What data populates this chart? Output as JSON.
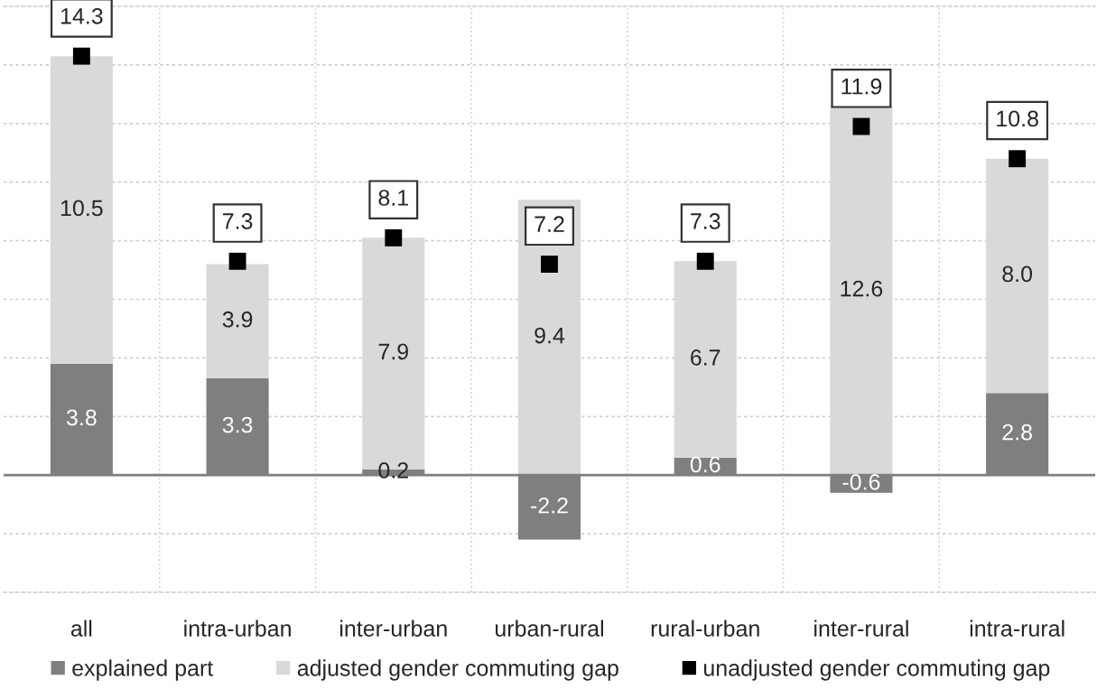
{
  "chart_data": {
    "type": "bar",
    "stacked": true,
    "categories": [
      "all",
      "intra-urban",
      "inter-urban",
      "urban-rural",
      "rural-urban",
      "inter-rural",
      "intra-rural"
    ],
    "series": [
      {
        "name": "explained part",
        "color": "#7f7f7f",
        "values": [
          3.8,
          3.3,
          0.2,
          -2.2,
          0.6,
          -0.6,
          2.8
        ],
        "value_labels": [
          "3.8",
          "3.3",
          "0.2",
          "-2.2",
          "0.6",
          "-0.6",
          "2.8"
        ]
      },
      {
        "name": "adjusted gender commuting gap",
        "color": "#d9d9d9",
        "values": [
          10.5,
          3.9,
          7.9,
          9.4,
          6.7,
          12.6,
          8.0
        ],
        "value_labels": [
          "10.5",
          "3.9",
          "7.9",
          "9.4",
          "6.7",
          "12.6",
          "8.0"
        ]
      },
      {
        "name": "unadjusted gender commuting gap",
        "type": "scatter",
        "marker": "square",
        "color": "#000000",
        "values": [
          14.3,
          7.3,
          8.1,
          7.2,
          7.3,
          11.9,
          10.8
        ],
        "value_labels": [
          "14.3",
          "7.3",
          "8.1",
          "7.2",
          "7.3",
          "11.9",
          "10.8"
        ]
      }
    ],
    "ylim": [
      -4,
      16
    ],
    "yticks": [
      {
        "value": -4,
        "label": null
      },
      {
        "value": -2,
        "label": null
      },
      {
        "value": 0,
        "label": null
      },
      {
        "value": 2,
        "label": null
      },
      {
        "value": 4,
        "label": null
      },
      {
        "value": 6,
        "label": null
      },
      {
        "value": 8,
        "label": null
      },
      {
        "value": 10,
        "label": null
      },
      {
        "value": 12,
        "label": null
      },
      {
        "value": 14,
        "label": null
      },
      {
        "value": 16,
        "label": null
      }
    ],
    "tick_labels": "x",
    "grid": true,
    "legend": "bottom"
  }
}
